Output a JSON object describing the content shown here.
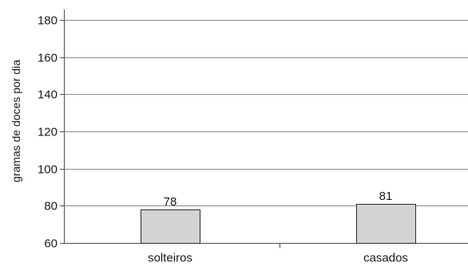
{
  "chart_data": {
    "type": "bar",
    "categories": [
      "solteiros",
      "casados"
    ],
    "values": [
      78,
      81
    ],
    "data_labels": [
      "78",
      "81"
    ],
    "title": "",
    "xlabel": "",
    "ylabel": "gramas de doces por dia",
    "ylim": [
      60,
      180
    ],
    "yticks": [
      60,
      80,
      100,
      120,
      140,
      160,
      180
    ],
    "grid": true,
    "legend": "none",
    "colors": {
      "bar_fill": "#d3d3d3",
      "bar_stroke": "#2b2b2b",
      "grid": "#8c8c8c",
      "axis": "#4d4d4d"
    }
  }
}
